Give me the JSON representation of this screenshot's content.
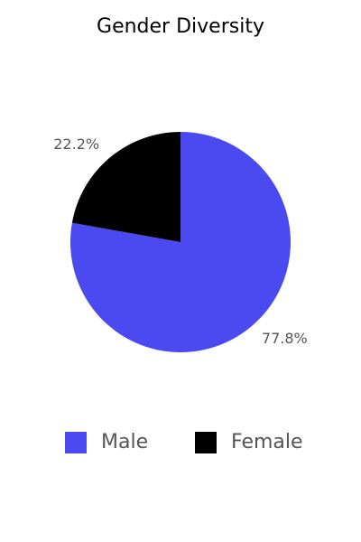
{
  "chart_data": {
    "type": "pie",
    "title": "Gender Diversity",
    "categories": [
      "Male",
      "Female"
    ],
    "values": [
      77.8,
      22.2
    ],
    "value_labels": [
      "77.8%",
      "22.2%"
    ],
    "colors": [
      "#4b4af0",
      "#000000"
    ],
    "legend": "bottom"
  }
}
